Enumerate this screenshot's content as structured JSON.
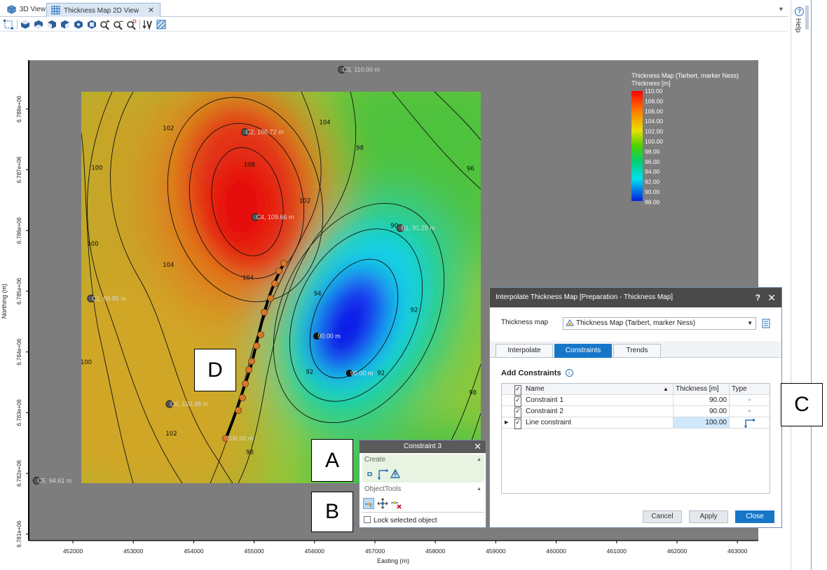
{
  "tabs": [
    {
      "label": "3D View",
      "active": false
    },
    {
      "label": "Thickness Map 2D View",
      "active": true
    }
  ],
  "help_label": "Help",
  "plot": {
    "xlabel": "Easting  (m)",
    "ylabel": "Northing  (m)",
    "xticks": [
      "452000",
      "453000",
      "454000",
      "455000",
      "456000",
      "457000",
      "458000",
      "459000",
      "460000",
      "461000",
      "462000",
      "463000"
    ],
    "yticks": [
      "6.781e+06",
      "6.782e+06",
      "6.783e+06",
      "6.784e+06",
      "6.785e+06",
      "6.786e+06",
      "6.787e+06",
      "6.788e+06"
    ],
    "legend": {
      "title1": "Thickness Map (Tarbert, marker Ness)",
      "title2": "Thickness [m]",
      "values": [
        "110.00",
        "108.00",
        "106.00",
        "104.00",
        "102.00",
        "100.00",
        "98.00",
        "96.00",
        "94.00",
        "92.00",
        "90.00",
        "88.00"
      ]
    },
    "wells": [
      {
        "label": "C3, 110.00 m",
        "x": 456450,
        "y": 6788650
      },
      {
        "label": "C2, 106.72 m",
        "x": 454850,
        "y": 6787620
      },
      {
        "label": "C4, 109.66 m",
        "x": 455020,
        "y": 6786220
      },
      {
        "label": "B1, 91.29 m",
        "x": 457420,
        "y": 6786040
      },
      {
        "label": "C1, 99.85 m",
        "x": 452300,
        "y": 6784880
      },
      {
        "label": "C6, 102.48 m",
        "x": 453600,
        "y": 6783140
      },
      {
        "label": "C5, 94.61 m",
        "x": 451400,
        "y": 6781880
      }
    ],
    "constraint_points": [
      {
        "label": "90.00 m",
        "x": 456040,
        "y": 6784260
      },
      {
        "label": "90.00 m",
        "x": 456580,
        "y": 6783650
      }
    ],
    "line_constraint_label": "100.00 m",
    "contour_labels": [
      {
        "t": "102",
        "x": 453580,
        "y": 6787650
      },
      {
        "t": "104",
        "x": 456170,
        "y": 6787750
      },
      {
        "t": "100",
        "x": 452400,
        "y": 6787000
      },
      {
        "t": "108",
        "x": 454920,
        "y": 6787050
      },
      {
        "t": "98",
        "x": 456750,
        "y": 6787330
      },
      {
        "t": "96",
        "x": 458580,
        "y": 6786990
      },
      {
        "t": "102",
        "x": 455840,
        "y": 6786460
      },
      {
        "t": "100",
        "x": 452330,
        "y": 6785750
      },
      {
        "t": "90",
        "x": 457320,
        "y": 6786050
      },
      {
        "t": "104",
        "x": 453580,
        "y": 6785400
      },
      {
        "t": "104",
        "x": 454900,
        "y": 6785190
      },
      {
        "t": "94",
        "x": 456050,
        "y": 6784930
      },
      {
        "t": "92",
        "x": 457650,
        "y": 6784660
      },
      {
        "t": "100",
        "x": 452220,
        "y": 6783800
      },
      {
        "t": "92",
        "x": 455920,
        "y": 6783640
      },
      {
        "t": "92",
        "x": 457100,
        "y": 6783620
      },
      {
        "t": "98",
        "x": 458620,
        "y": 6783300
      },
      {
        "t": "102",
        "x": 453630,
        "y": 6782620
      },
      {
        "t": "98",
        "x": 454930,
        "y": 6782320
      }
    ]
  },
  "dialog": {
    "title": "Interpolate Thickness Map [Preparation - Thickness Map]",
    "help": "?",
    "map_label": "Thickness map",
    "map_value": "Thickness Map (Tarbert, marker Ness)",
    "tabs": [
      "Interpolate",
      "Constraints",
      "Trends"
    ],
    "add_title": "Add Constraints",
    "columns": [
      "Name",
      "Thickness  [m]",
      "Type"
    ],
    "rows": [
      {
        "name": "Constraint 1",
        "thickness": "90.00",
        "type": "point"
      },
      {
        "name": "Constraint 2",
        "thickness": "90.00",
        "type": "point"
      },
      {
        "name": "Line constraint",
        "thickness": "100.00",
        "type": "line"
      }
    ],
    "buttons": {
      "cancel": "Cancel",
      "apply": "Apply",
      "close": "Close"
    }
  },
  "constraint3": {
    "title": "Constraint 3",
    "create": "Create",
    "objecttools": "ObjectTools",
    "lock": "Lock selected object"
  },
  "callouts": {
    "a": "A",
    "b": "B",
    "c": "C",
    "d": "D"
  }
}
